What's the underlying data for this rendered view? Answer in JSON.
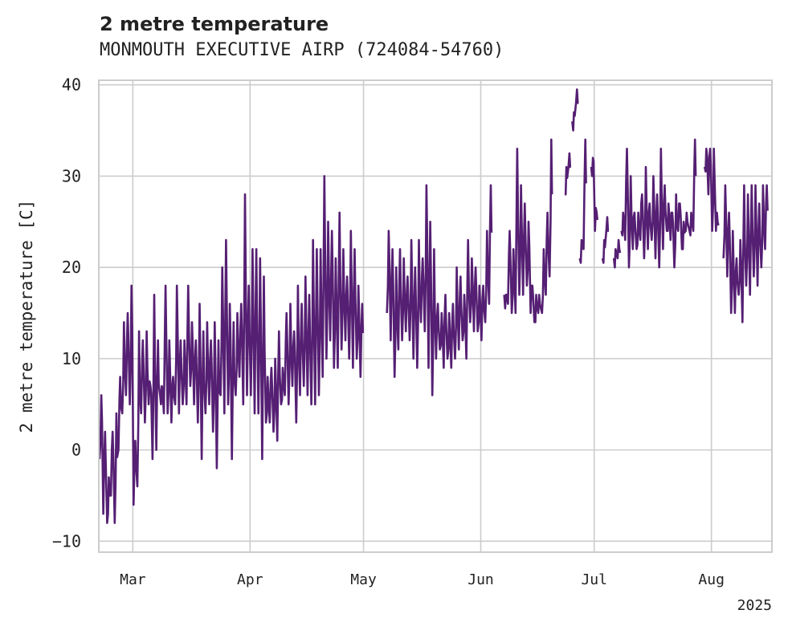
{
  "chart_data": {
    "type": "line",
    "title": "2 metre temperature",
    "subtitle": "MONMOUTH EXECUTIVE AIRP (724084-54760)",
    "xlabel": "",
    "ylabel": "2 metre temperature [C]",
    "ylim": [
      -11.2,
      40.5
    ],
    "xlim": [
      "2025-02-20",
      "2025-08-17"
    ],
    "yticks": [
      -10,
      0,
      10,
      20,
      30,
      40
    ],
    "xticks": [
      {
        "date": "2025-03-01",
        "label": "Mar"
      },
      {
        "date": "2025-04-01",
        "label": "Apr"
      },
      {
        "date": "2025-05-01",
        "label": "May"
      },
      {
        "date": "2025-06-01",
        "label": "Jun"
      },
      {
        "date": "2025-07-01",
        "label": "Jul"
      },
      {
        "date": "2025-08-01",
        "label": "Aug"
      }
    ],
    "year_label": "2025",
    "grid": true,
    "line_color": "#551f73",
    "series": [
      {
        "values_note_free": true,
        "segments": [
          {
            "x": [
              "2025-02-20",
              "2025-02-21",
              "2025-02-22",
              "2025-02-23",
              "2025-02-24",
              "2025-02-25",
              "2025-02-26",
              "2025-02-27",
              "2025-02-28",
              "2025-03-01",
              "2025-03-02",
              "2025-03-03",
              "2025-03-04",
              "2025-03-05",
              "2025-03-06",
              "2025-03-07",
              "2025-03-08",
              "2025-03-09",
              "2025-03-10",
              "2025-03-11",
              "2025-03-12",
              "2025-03-13",
              "2025-03-14",
              "2025-03-15",
              "2025-03-16",
              "2025-03-17",
              "2025-03-18",
              "2025-03-19",
              "2025-03-20",
              "2025-03-21",
              "2025-03-22",
              "2025-03-23",
              "2025-03-24",
              "2025-03-25",
              "2025-03-26",
              "2025-03-27",
              "2025-03-28",
              "2025-03-29",
              "2025-03-30",
              "2025-03-31",
              "2025-04-01",
              "2025-04-02",
              "2025-04-03",
              "2025-04-04",
              "2025-04-05",
              "2025-04-06",
              "2025-04-07",
              "2025-04-08",
              "2025-04-09",
              "2025-04-10",
              "2025-04-11",
              "2025-04-12",
              "2025-04-13",
              "2025-04-14",
              "2025-04-15",
              "2025-04-16",
              "2025-04-17",
              "2025-04-18",
              "2025-04-19",
              "2025-04-20",
              "2025-04-21",
              "2025-04-22",
              "2025-04-23",
              "2025-04-24",
              "2025-04-25",
              "2025-04-26",
              "2025-04-27",
              "2025-04-28",
              "2025-04-29",
              "2025-04-30"
            ],
            "low": [
              -1,
              -7,
              -8,
              -5,
              -8,
              0,
              4,
              6,
              5,
              -6,
              -4,
              4,
              3,
              5,
              -1,
              0,
              6,
              4,
              4,
              3,
              5,
              4,
              5,
              5,
              7,
              5,
              3,
              -1,
              4,
              5,
              2,
              -2,
              6,
              4,
              5,
              -1,
              6,
              8,
              5,
              6,
              6,
              4,
              4,
              -1,
              3,
              3,
              2,
              1,
              5,
              6,
              5,
              7,
              3,
              6,
              7,
              6,
              5,
              5,
              6,
              8,
              10,
              12,
              9,
              9,
              11,
              12,
              10,
              9,
              10,
              8
            ],
            "high": [
              6,
              2,
              -3,
              2,
              4,
              8,
              14,
              15,
              18,
              1,
              13,
              12,
              13,
              7,
              17,
              12,
              7,
              18,
              12,
              8,
              18,
              12,
              12,
              18,
              14,
              12,
              16,
              13,
              14,
              12,
              14,
              12,
              20,
              23,
              16,
              14,
              15,
              16,
              28,
              18,
              22,
              22,
              21,
              19,
              8,
              9,
              10,
              13,
              9,
              15,
              16,
              13,
              18,
              16,
              19,
              17,
              23,
              22,
              22,
              30,
              25,
              24,
              21,
              26,
              22,
              19,
              24,
              22,
              18,
              16
            ]
          },
          {
            "x": [
              "2025-05-07",
              "2025-05-08",
              "2025-05-09",
              "2025-05-10",
              "2025-05-11",
              "2025-05-12",
              "2025-05-13",
              "2025-05-14",
              "2025-05-15",
              "2025-05-16",
              "2025-05-17",
              "2025-05-18",
              "2025-05-19",
              "2025-05-20",
              "2025-05-21",
              "2025-05-22",
              "2025-05-23",
              "2025-05-24",
              "2025-05-25",
              "2025-05-26",
              "2025-05-27",
              "2025-05-28",
              "2025-05-29",
              "2025-05-30",
              "2025-05-31",
              "2025-06-01",
              "2025-06-02",
              "2025-06-03"
            ],
            "low": [
              15,
              12,
              8,
              11,
              12,
              13,
              12,
              10,
              9,
              14,
              13,
              9,
              6,
              10,
              11,
              9,
              10,
              9,
              10,
              11,
              12,
              10,
              14,
              13,
              13,
              12,
              14,
              16
            ],
            "high": [
              24,
              22,
              20,
              22,
              21,
              19,
              23,
              20,
              23,
              21,
              29,
              25,
              22,
              16,
              15,
              17,
              15,
              16,
              20,
              19,
              17,
              23,
              21,
              20,
              18,
              18,
              24,
              29
            ]
          },
          {
            "x": [
              "2025-06-07",
              "2025-06-08",
              "2025-06-09",
              "2025-06-10",
              "2025-06-11",
              "2025-06-12",
              "2025-06-13",
              "2025-06-14",
              "2025-06-15",
              "2025-06-16",
              "2025-06-17",
              "2025-06-18",
              "2025-06-19"
            ],
            "low": [
              17,
              16,
              15,
              15,
              17,
              17,
              18,
              15,
              14,
              15,
              15,
              17,
              19
            ],
            "high": [
              17,
              24,
              22,
              33,
              29,
              27,
              25,
              18,
              17,
              16,
              22,
              26,
              34
            ]
          },
          {
            "x": [
              "2025-06-23",
              "2025-06-24"
            ],
            "low": [
              28,
              31
            ],
            "high": [
              31,
              31
            ]
          },
          {
            "x": [
              "2025-06-25",
              "2025-06-26"
            ],
            "low": [
              36,
              38
            ],
            "high": [
              37,
              38
            ]
          },
          {
            "x": [
              "2025-06-27",
              "2025-06-28"
            ],
            "low": [
              21,
              22
            ],
            "high": [
              23,
              34
            ]
          },
          {
            "x": [
              "2025-06-30",
              "2025-07-01"
            ],
            "low": [
              31,
              24
            ],
            "high": [
              32,
              26
            ]
          },
          {
            "x": [
              "2025-07-03",
              "2025-07-04"
            ],
            "low": [
              21,
              24
            ],
            "high": [
              23,
              24
            ]
          },
          {
            "x": [
              "2025-07-06",
              "2025-07-07"
            ],
            "low": [
              21,
              21
            ],
            "high": [
              22,
              22
            ]
          },
          {
            "x": [
              "2025-07-08",
              "2025-07-09",
              "2025-07-10",
              "2025-07-11",
              "2025-07-12",
              "2025-07-13",
              "2025-07-14",
              "2025-07-15",
              "2025-07-16",
              "2025-07-17",
              "2025-07-18",
              "2025-07-19",
              "2025-07-20",
              "2025-07-21",
              "2025-07-22",
              "2025-07-23",
              "2025-07-24",
              "2025-07-25",
              "2025-07-26",
              "2025-07-27"
            ],
            "low": [
              24,
              23,
              20,
              22,
              22,
              23,
              21,
              22,
              23,
              21,
              20,
              22,
              24,
              23,
              20,
              24,
              22,
              24,
              24,
              24
            ],
            "high": [
              26,
              33,
              30,
              26,
              26,
              28,
              31,
              27,
              30,
              28,
              33,
              29,
              27,
              26,
              28,
              27,
              25,
              25,
              26,
              34
            ]
          },
          {
            "x": [
              "2025-07-30",
              "2025-07-31",
              "2025-08-01",
              "2025-08-02"
            ],
            "low": [
              31,
              28,
              24,
              24
            ],
            "high": [
              33,
              33,
              33,
              25
            ]
          },
          {
            "x": [
              "2025-08-04",
              "2025-08-05",
              "2025-08-06",
              "2025-08-07",
              "2025-08-08",
              "2025-08-09",
              "2025-08-10",
              "2025-08-11",
              "2025-08-12",
              "2025-08-13",
              "2025-08-14",
              "2025-08-15"
            ],
            "low": [
              21,
              19,
              15,
              15,
              17,
              14,
              18,
              17,
              19,
              18,
              20,
              22
            ],
            "high": [
              29,
              26,
              24,
              21,
              23,
              29,
              28,
              29,
              29,
              27,
              29,
              29
            ]
          }
        ]
      }
    ]
  }
}
